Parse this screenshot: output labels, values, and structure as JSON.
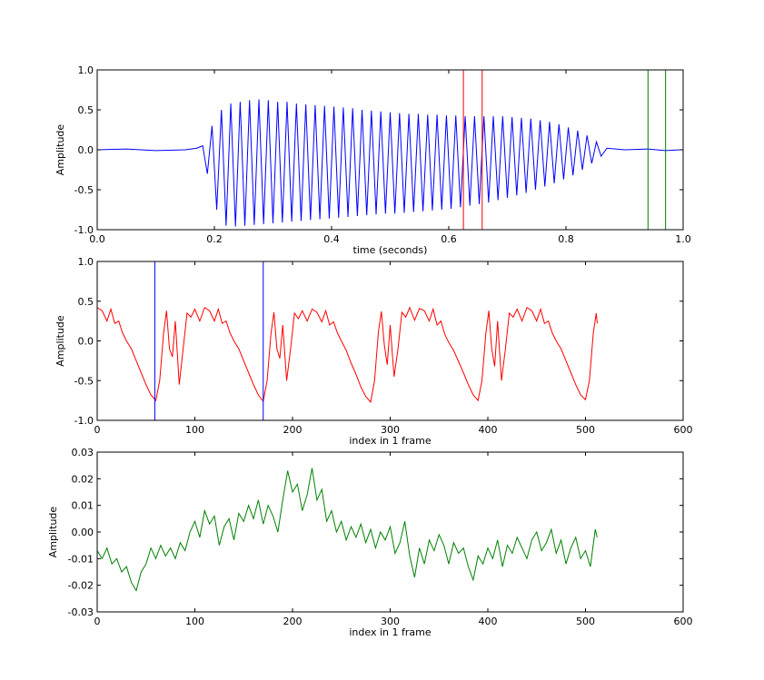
{
  "chart_data": [
    {
      "type": "line",
      "xlabel": "time (seconds)",
      "ylabel": "Amplitude",
      "xlim": [
        0,
        1
      ],
      "ylim": [
        -1,
        1
      ],
      "xticks": [
        {
          "value": 0,
          "label": "0.0"
        },
        {
          "value": 0.2,
          "label": "0.2"
        },
        {
          "value": 0.4,
          "label": "0.4"
        },
        {
          "value": 0.6,
          "label": "0.6"
        },
        {
          "value": 0.8,
          "label": "0.8"
        },
        {
          "value": 1,
          "label": "1.0"
        }
      ],
      "yticks": [
        {
          "value": -1,
          "label": "-1.0"
        },
        {
          "value": -0.5,
          "label": "-0.5"
        },
        {
          "value": 0,
          "label": "0.0"
        },
        {
          "value": 0.5,
          "label": "0.5"
        },
        {
          "value": 1,
          "label": "1.0"
        }
      ],
      "x": [
        0,
        0.05,
        0.1,
        0.15,
        0.17,
        0.18,
        0.188,
        0.196,
        0.204,
        0.212,
        0.22,
        0.228,
        0.236,
        0.244,
        0.252,
        0.26,
        0.268,
        0.276,
        0.284,
        0.292,
        0.3,
        0.308,
        0.316,
        0.324,
        0.332,
        0.34,
        0.348,
        0.356,
        0.364,
        0.372,
        0.38,
        0.388,
        0.396,
        0.404,
        0.412,
        0.42,
        0.428,
        0.436,
        0.444,
        0.452,
        0.46,
        0.468,
        0.476,
        0.484,
        0.492,
        0.5,
        0.508,
        0.516,
        0.524,
        0.532,
        0.54,
        0.548,
        0.556,
        0.564,
        0.572,
        0.58,
        0.588,
        0.596,
        0.604,
        0.612,
        0.62,
        0.628,
        0.636,
        0.644,
        0.652,
        0.66,
        0.668,
        0.676,
        0.684,
        0.692,
        0.7,
        0.708,
        0.716,
        0.724,
        0.732,
        0.74,
        0.748,
        0.756,
        0.764,
        0.772,
        0.78,
        0.788,
        0.796,
        0.804,
        0.812,
        0.82,
        0.828,
        0.836,
        0.844,
        0.852,
        0.86,
        0.87,
        0.9,
        0.94,
        0.97,
        0.995
      ],
      "series": [
        {
          "color": "#0000ff",
          "values": [
            0,
            0.01,
            -0.01,
            0,
            0.02,
            0.05,
            -0.3,
            0.3,
            -0.75,
            0.5,
            -0.95,
            0.58,
            -0.96,
            0.6,
            -0.95,
            0.62,
            -0.94,
            0.63,
            -0.93,
            0.62,
            -0.92,
            0.6,
            -0.91,
            0.6,
            -0.9,
            0.58,
            -0.89,
            0.57,
            -0.88,
            0.56,
            -0.87,
            0.55,
            -0.86,
            0.54,
            -0.85,
            0.53,
            -0.84,
            0.52,
            -0.83,
            0.5,
            -0.82,
            0.49,
            -0.81,
            0.48,
            -0.8,
            0.47,
            -0.8,
            0.46,
            -0.79,
            0.45,
            -0.78,
            0.45,
            -0.77,
            0.44,
            -0.76,
            0.44,
            -0.75,
            0.43,
            -0.74,
            0.43,
            -0.72,
            0.42,
            -0.7,
            0.42,
            -0.68,
            0.42,
            -0.66,
            0.42,
            -0.63,
            0.42,
            -0.6,
            0.41,
            -0.57,
            0.4,
            -0.54,
            0.39,
            -0.5,
            0.37,
            -0.46,
            0.35,
            -0.42,
            0.32,
            -0.37,
            0.28,
            -0.32,
            0.24,
            -0.25,
            0.18,
            -0.17,
            0.1,
            -0.08,
            0.02,
            0,
            0.01,
            -0.01,
            0
          ]
        }
      ],
      "vlines": [
        {
          "x": 0.625,
          "color": "#ff0000"
        },
        {
          "x": 0.657,
          "color": "#ff0000"
        },
        {
          "x": 0.94,
          "color": "#008000"
        },
        {
          "x": 0.97,
          "color": "#008000"
        }
      ]
    },
    {
      "type": "line",
      "xlabel": "index in 1 frame",
      "ylabel": "Amplitude",
      "xlim": [
        0,
        600
      ],
      "ylim": [
        -1,
        1
      ],
      "xticks": [
        0,
        100,
        200,
        300,
        400,
        500,
        600
      ],
      "yticks": [
        {
          "value": -1,
          "label": "-1.0"
        },
        {
          "value": -0.5,
          "label": "-0.5"
        },
        {
          "value": 0,
          "label": "0.0"
        },
        {
          "value": 0.5,
          "label": "0.5"
        },
        {
          "value": 1,
          "label": "1.0"
        }
      ],
      "x": [
        0,
        5,
        10,
        14,
        18,
        22,
        26,
        30,
        35,
        40,
        45,
        50,
        55,
        60,
        64,
        68,
        71,
        74,
        77,
        80,
        84,
        88,
        92,
        96,
        100,
        105,
        110,
        115,
        120,
        124,
        128,
        132,
        136,
        140,
        145,
        150,
        155,
        160,
        165,
        170,
        174,
        178,
        181,
        184,
        187,
        190,
        194,
        198,
        202,
        206,
        210,
        215,
        220,
        225,
        230,
        234,
        238,
        242,
        246,
        250,
        255,
        260,
        265,
        270,
        275,
        280,
        284,
        288,
        291,
        294,
        297,
        300,
        304,
        308,
        312,
        316,
        320,
        325,
        330,
        335,
        340,
        344,
        348,
        352,
        356,
        360,
        365,
        370,
        375,
        380,
        385,
        390,
        394,
        398,
        401,
        404,
        407,
        410,
        414,
        418,
        422,
        426,
        430,
        435,
        440,
        445,
        450,
        454,
        458,
        462,
        466,
        470,
        475,
        480,
        485,
        490,
        495,
        500,
        504,
        508,
        511,
        512
      ],
      "series": [
        {
          "color": "#ff0000",
          "values": [
            0.42,
            0.38,
            0.25,
            0.4,
            0.22,
            0.25,
            0.1,
            0,
            -0.1,
            -0.25,
            -0.4,
            -0.55,
            -0.68,
            -0.75,
            -0.5,
            0.1,
            0.38,
            -0.1,
            -0.2,
            0.25,
            -0.55,
            -0.1,
            0.35,
            0.3,
            0.4,
            0.25,
            0.42,
            0.38,
            0.25,
            0.4,
            0.22,
            0.25,
            0.1,
            0,
            -0.1,
            -0.25,
            -0.4,
            -0.55,
            -0.68,
            -0.76,
            -0.5,
            0.1,
            0.36,
            -0.1,
            -0.22,
            0.2,
            -0.5,
            -0.1,
            0.35,
            0.28,
            0.38,
            0.25,
            0.4,
            0.36,
            0.24,
            0.38,
            0.2,
            0.24,
            0.1,
            0,
            -0.12,
            -0.28,
            -0.42,
            -0.58,
            -0.7,
            -0.77,
            -0.5,
            0.12,
            0.37,
            -0.05,
            -0.3,
            0.2,
            -0.45,
            -0.1,
            0.36,
            0.3,
            0.42,
            0.26,
            0.41,
            0.38,
            0.25,
            0.4,
            0.2,
            0.25,
            0.08,
            -0.02,
            -0.12,
            -0.26,
            -0.4,
            -0.55,
            -0.68,
            -0.75,
            -0.5,
            0.1,
            0.38,
            -0.1,
            -0.32,
            0.25,
            -0.5,
            -0.1,
            0.35,
            0.3,
            0.4,
            0.25,
            0.42,
            0.38,
            0.25,
            0.4,
            0.22,
            0.25,
            0.1,
            0,
            -0.1,
            -0.25,
            -0.4,
            -0.55,
            -0.68,
            -0.74,
            -0.5,
            0.1,
            0.35,
            0.22
          ]
        }
      ],
      "vlines": [
        {
          "x": 59,
          "color": "#0000ff"
        },
        {
          "x": 170,
          "color": "#0000ff"
        }
      ]
    },
    {
      "type": "line",
      "xlabel": "index in 1 frame",
      "ylabel": "Amplitude",
      "xlim": [
        0,
        600
      ],
      "ylim": [
        -0.03,
        0.03
      ],
      "xticks": [
        0,
        100,
        200,
        300,
        400,
        500,
        600
      ],
      "yticks": [
        {
          "value": -0.03,
          "label": "-0.03"
        },
        {
          "value": -0.02,
          "label": "-0.02"
        },
        {
          "value": -0.01,
          "label": "-0.01"
        },
        {
          "value": 0,
          "label": "0.00"
        },
        0.01,
        0.02,
        0.03
      ],
      "x": [
        0,
        5,
        10,
        15,
        20,
        25,
        30,
        35,
        40,
        45,
        50,
        55,
        60,
        65,
        70,
        75,
        80,
        85,
        90,
        95,
        100,
        105,
        110,
        115,
        120,
        125,
        130,
        135,
        140,
        145,
        150,
        155,
        160,
        165,
        170,
        175,
        180,
        185,
        190,
        195,
        200,
        205,
        210,
        215,
        220,
        225,
        230,
        235,
        240,
        245,
        250,
        255,
        260,
        265,
        270,
        275,
        280,
        285,
        290,
        295,
        300,
        305,
        310,
        315,
        320,
        325,
        330,
        335,
        340,
        345,
        350,
        355,
        360,
        365,
        370,
        375,
        380,
        385,
        390,
        395,
        400,
        405,
        410,
        415,
        420,
        425,
        430,
        435,
        440,
        445,
        450,
        455,
        460,
        465,
        470,
        475,
        480,
        485,
        490,
        495,
        500,
        505,
        510,
        512
      ],
      "series": [
        {
          "color": "#008000",
          "values": [
            -0.007,
            -0.01,
            -0.006,
            -0.012,
            -0.01,
            -0.015,
            -0.013,
            -0.019,
            -0.022,
            -0.015,
            -0.012,
            -0.006,
            -0.01,
            -0.005,
            -0.009,
            -0.006,
            -0.01,
            -0.004,
            -0.007,
            0,
            0.004,
            -0.002,
            0.008,
            0.003,
            0.006,
            -0.005,
            0.002,
            0.005,
            -0.003,
            0.007,
            0.004,
            0.01,
            0.005,
            0.012,
            0.003,
            0.01,
            0.006,
            0,
            0.012,
            0.023,
            0.015,
            0.018,
            0.008,
            0.014,
            0.024,
            0.012,
            0.016,
            0.004,
            0.008,
            0,
            0.004,
            -0.003,
            0.002,
            -0.002,
            0.003,
            -0.004,
            0.001,
            -0.006,
            0,
            -0.003,
            0.002,
            -0.008,
            -0.004,
            0.004,
            -0.009,
            -0.017,
            -0.006,
            -0.012,
            -0.003,
            -0.007,
            -0.001,
            -0.005,
            -0.012,
            -0.004,
            -0.008,
            -0.006,
            -0.013,
            -0.018,
            -0.009,
            -0.012,
            -0.006,
            -0.01,
            -0.003,
            -0.013,
            -0.005,
            -0.008,
            -0.002,
            -0.006,
            -0.01,
            -0.003,
            0,
            -0.007,
            -0.004,
            0.001,
            -0.008,
            -0.003,
            -0.012,
            -0.006,
            -0.002,
            -0.01,
            -0.007,
            -0.013,
            0.001,
            -0.002
          ]
        }
      ]
    }
  ]
}
